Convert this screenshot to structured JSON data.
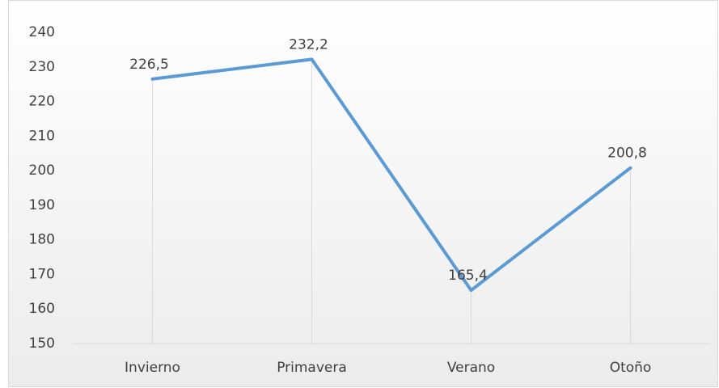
{
  "chart_data": {
    "type": "line",
    "categories": [
      "Invierno",
      "Primavera",
      "Verano",
      "Otoño"
    ],
    "series": [
      {
        "color": "#5b9bd5",
        "values": [
          226.5,
          232.2,
          165.4,
          200.8
        ],
        "value_labels": [
          "226,5",
          "232,2",
          "165,4",
          "200,8"
        ]
      }
    ],
    "ylim": [
      150,
      240
    ],
    "yticks": [
      150,
      160,
      170,
      180,
      190,
      200,
      210,
      220,
      230,
      240
    ],
    "drop_lines": true,
    "grid": false
  }
}
